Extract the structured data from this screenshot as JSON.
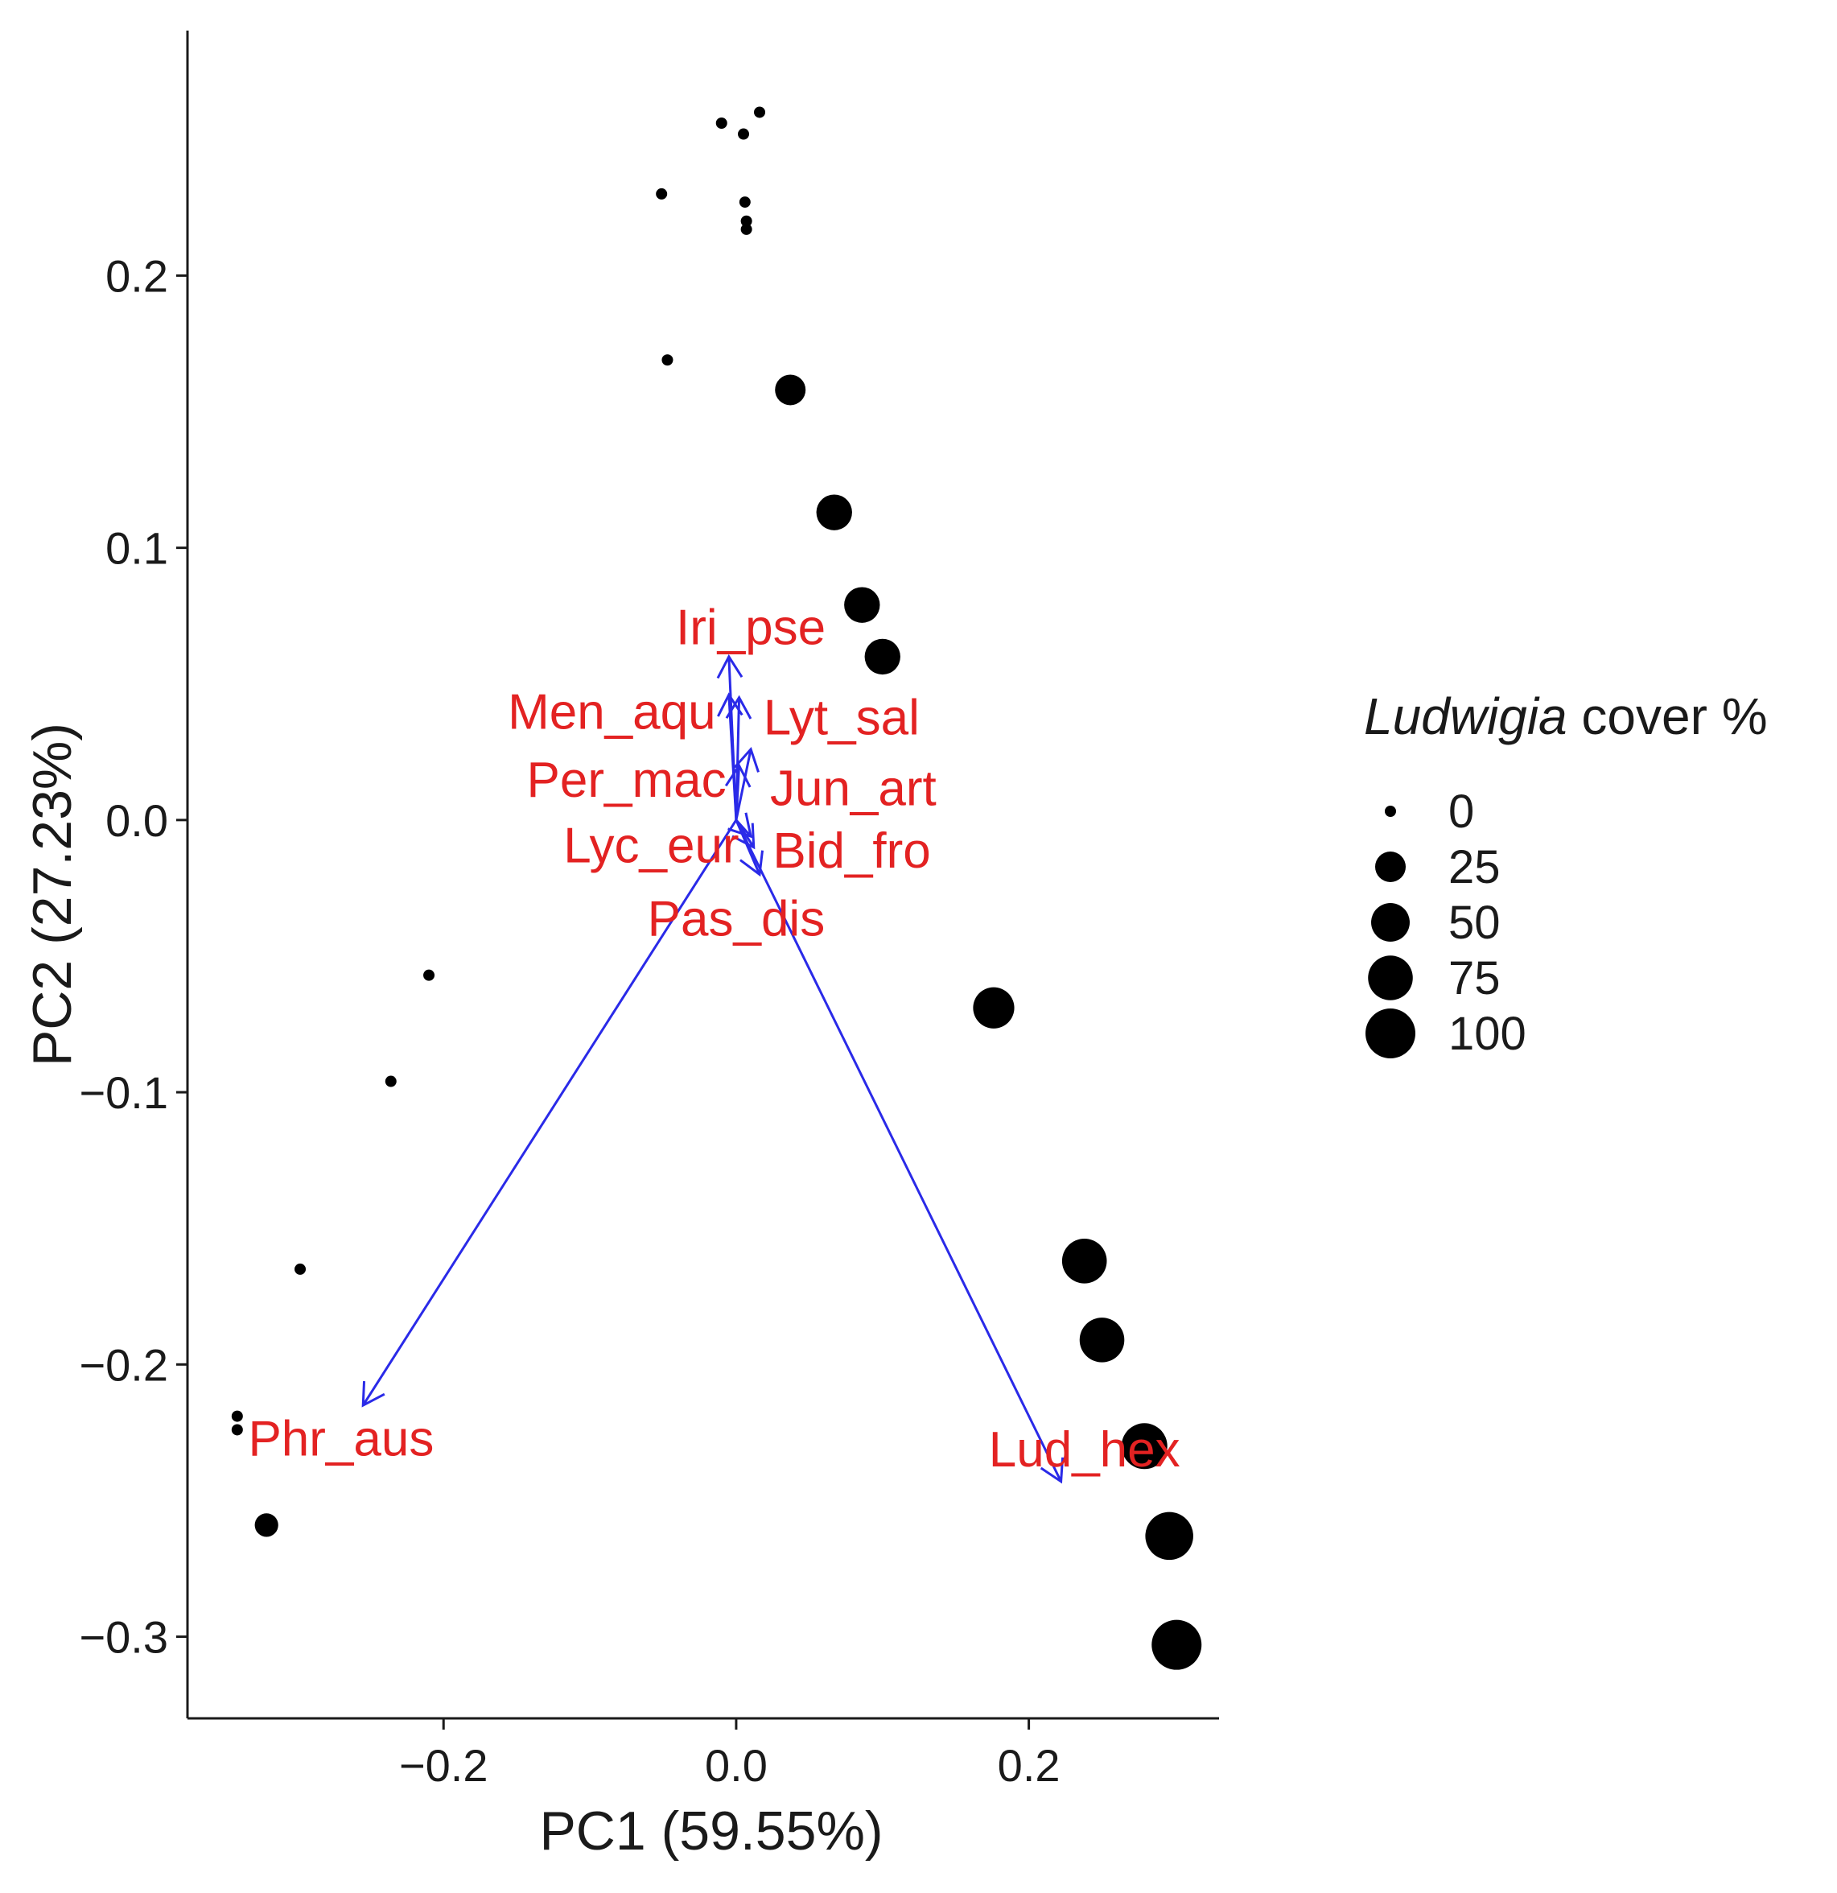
{
  "chart_data": {
    "type": "scatter",
    "subtype": "pca-biplot",
    "title": "",
    "xlabel": "PC1 (59.55%)",
    "ylabel": "PC2 (27.23%)",
    "xlim": [
      -0.375,
      0.33
    ],
    "ylim": [
      -0.33,
      0.29
    ],
    "x_ticks": [
      -0.2,
      0.0,
      0.2
    ],
    "x_tick_labels": [
      "−0.2",
      "0.0",
      "0.2"
    ],
    "y_ticks": [
      0.2,
      0.1,
      0.0,
      -0.1,
      -0.2,
      -0.3
    ],
    "y_tick_labels": [
      "0.2",
      "0.1",
      "0.0",
      "−0.1",
      "−0.2",
      "−0.3"
    ],
    "grid": false,
    "points": [
      {
        "x": -0.01,
        "y": 0.256,
        "cover": 0
      },
      {
        "x": 0.005,
        "y": 0.252,
        "cover": 0
      },
      {
        "x": 0.016,
        "y": 0.26,
        "cover": 0
      },
      {
        "x": -0.051,
        "y": 0.23,
        "cover": 0
      },
      {
        "x": 0.006,
        "y": 0.227,
        "cover": 0
      },
      {
        "x": 0.007,
        "y": 0.22,
        "cover": 0
      },
      {
        "x": 0.007,
        "y": 0.217,
        "cover": 0
      },
      {
        "x": -0.047,
        "y": 0.169,
        "cover": 0
      },
      {
        "x": 0.037,
        "y": 0.158,
        "cover": 25
      },
      {
        "x": 0.067,
        "y": 0.113,
        "cover": 40
      },
      {
        "x": 0.086,
        "y": 0.079,
        "cover": 40
      },
      {
        "x": 0.1,
        "y": 0.06,
        "cover": 40
      },
      {
        "x": -0.21,
        "y": -0.057,
        "cover": 0
      },
      {
        "x": -0.236,
        "y": -0.096,
        "cover": 0
      },
      {
        "x": 0.176,
        "y": -0.069,
        "cover": 60
      },
      {
        "x": -0.298,
        "y": -0.165,
        "cover": 0
      },
      {
        "x": -0.341,
        "y": -0.219,
        "cover": 0
      },
      {
        "x": -0.341,
        "y": -0.224,
        "cover": 0
      },
      {
        "x": -0.321,
        "y": -0.259,
        "cover": 10
      },
      {
        "x": 0.238,
        "y": -0.162,
        "cover": 75
      },
      {
        "x": 0.25,
        "y": -0.191,
        "cover": 75
      },
      {
        "x": 0.279,
        "y": -0.23,
        "cover": 80
      },
      {
        "x": 0.296,
        "y": -0.263,
        "cover": 90
      },
      {
        "x": 0.301,
        "y": -0.303,
        "cover": 100
      }
    ],
    "vectors": [
      {
        "name": "Iri_pse",
        "x": -0.005,
        "y": 0.06
      },
      {
        "name": "Men_aqu",
        "x": -0.005,
        "y": 0.046
      },
      {
        "name": "Lyt_sal",
        "x": 0.002,
        "y": 0.045
      },
      {
        "name": "Per_mac",
        "x": 0.002,
        "y": 0.02
      },
      {
        "name": "Jun_art",
        "x": 0.01,
        "y": 0.026
      },
      {
        "name": "Lyc_eur",
        "x": 0.01,
        "y": -0.006
      },
      {
        "name": "Bid_fro",
        "x": 0.012,
        "y": -0.01
      },
      {
        "name": "Pas_dis",
        "x": 0.016,
        "y": -0.02
      },
      {
        "name": "Phr_aus",
        "x": -0.255,
        "y": -0.215
      },
      {
        "name": "Lud_hex",
        "x": 0.222,
        "y": -0.243
      }
    ],
    "vector_labels": [
      {
        "text": "Iri_pse",
        "x": 0.01,
        "y": 0.071
      },
      {
        "text": "Men_aqu",
        "x": -0.085,
        "y": 0.04
      },
      {
        "text": "Lyt_sal",
        "x": 0.072,
        "y": 0.038
      },
      {
        "text": "Per_mac",
        "x": -0.075,
        "y": 0.015
      },
      {
        "text": "Jun_art",
        "x": 0.08,
        "y": 0.012
      },
      {
        "text": "Lyc_eur",
        "x": -0.058,
        "y": -0.009
      },
      {
        "text": "Bid_fro",
        "x": 0.079,
        "y": -0.011
      },
      {
        "text": "Pas_dis",
        "x": 0.0,
        "y": -0.036
      },
      {
        "text": "Phr_aus",
        "x": -0.27,
        "y": -0.227
      },
      {
        "text": "Lud_hex",
        "x": 0.238,
        "y": -0.231
      }
    ],
    "legend": {
      "title_italic": "Ludwigia",
      "title_rest": " cover %",
      "placement": "right",
      "entries": [
        {
          "label": "0",
          "value": 0
        },
        {
          "label": "25",
          "value": 25
        },
        {
          "label": "50",
          "value": 50
        },
        {
          "label": "75",
          "value": 75
        },
        {
          "label": "100",
          "value": 100
        }
      ]
    },
    "colors": {
      "points": "#000000",
      "vectors": "#2a2ae8",
      "vector_labels": "#e32222",
      "axis": "#1a1a1a"
    }
  }
}
